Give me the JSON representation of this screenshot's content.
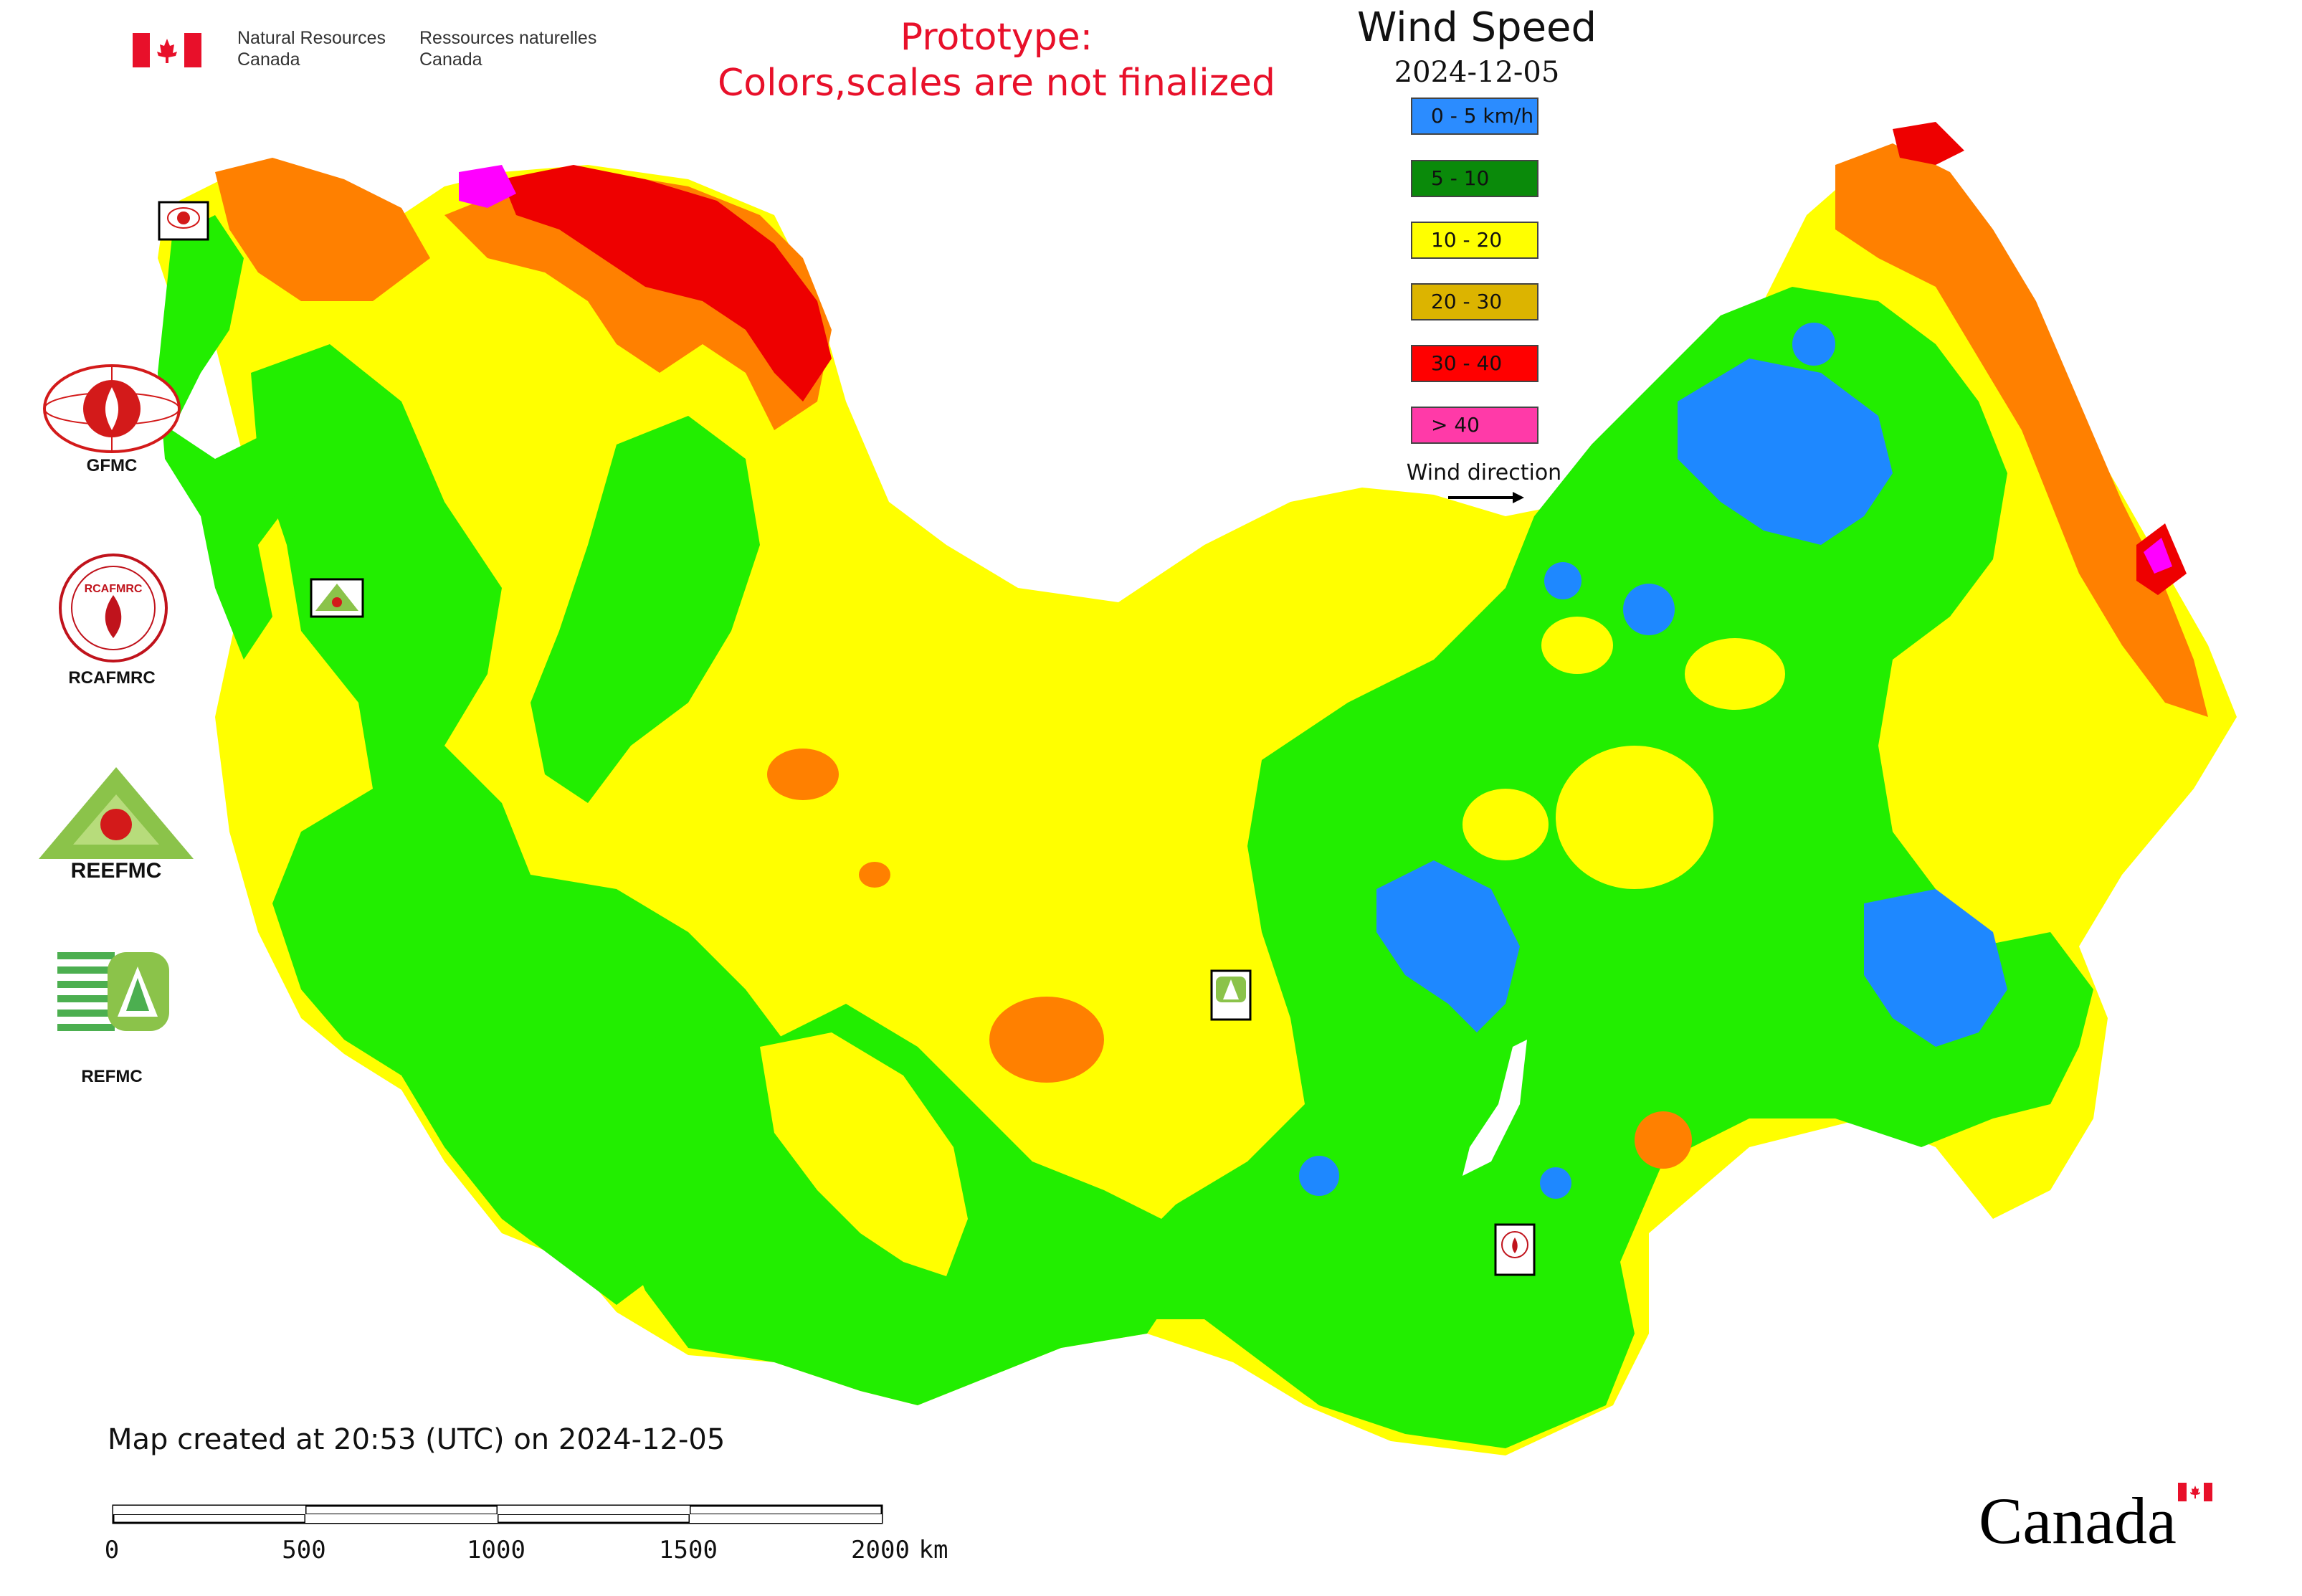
{
  "header": {
    "dept_en_line1": "Natural Resources",
    "dept_en_line2": "Canada",
    "dept_fr_line1": "Ressources naturelles",
    "dept_fr_line2": "Canada"
  },
  "notice": {
    "line1": "Prototype:",
    "line2": "Colors,scales are not finalized",
    "color": "#e8102a"
  },
  "map": {
    "title": "Wind Speed",
    "date": "2024-12-05",
    "created_text": "Map created at 20:53 (UTC) on 2024-12-05"
  },
  "legend": {
    "items": [
      {
        "label": "0 - 5 km/h",
        "color": "#2b8cff"
      },
      {
        "label": "5 - 10",
        "color": "#0a8a0a"
      },
      {
        "label": "10 - 20",
        "color": "#ffff00"
      },
      {
        "label": "20 - 30",
        "color": "#dcb400"
      },
      {
        "label": "30 - 40",
        "color": "#ff0000"
      },
      {
        "label": "> 40",
        "color": "#ff3aa8"
      }
    ],
    "wind_direction_label": "Wind direction"
  },
  "map_colors": {
    "green": "#22ee00",
    "yellow": "#ffff00",
    "orange": "#ff8000",
    "red": "#ee0000",
    "blue": "#1e88ff",
    "magenta": "#ff00ff"
  },
  "organizations": [
    {
      "label": "GFMC",
      "icon": "gfmc-logo"
    },
    {
      "label": "RCAFMRC",
      "icon": "rcafmrc-logo"
    },
    {
      "label": "",
      "icon": "reefmc-logo"
    },
    {
      "label": "REFMC",
      "icon": "refmc-logo"
    }
  ],
  "logo_text": {
    "reefmc": "REEFMC",
    "rcafmrc": "RCAFMRC"
  },
  "scale": {
    "ticks": [
      "0",
      "500",
      "1000",
      "1500",
      "2000"
    ],
    "unit": "km"
  },
  "wordmark": "Canada"
}
